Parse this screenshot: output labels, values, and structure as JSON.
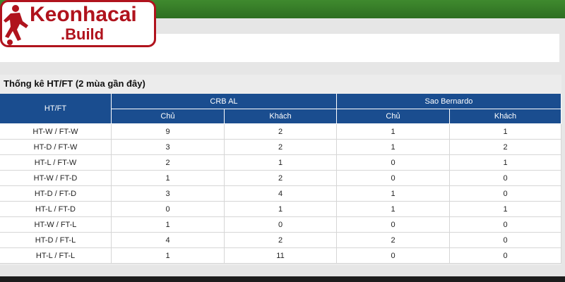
{
  "logo": {
    "name": "Keonhacai",
    "suffix": ".Build"
  },
  "section": {
    "title": "Thống kê HT/FT (2 mùa gần đây)"
  },
  "table": {
    "header": {
      "label": "HT/FT",
      "groups": [
        "CRB AL",
        "Sao Bernardo"
      ],
      "columns": [
        "Chủ",
        "Khách",
        "Chủ",
        "Khách"
      ]
    },
    "rows": [
      {
        "label": "HT-W / FT-W",
        "values": [
          9,
          2,
          1,
          1
        ]
      },
      {
        "label": "HT-D / FT-W",
        "values": [
          3,
          2,
          1,
          2
        ]
      },
      {
        "label": "HT-L / FT-W",
        "values": [
          2,
          1,
          0,
          1
        ]
      },
      {
        "label": "HT-W / FT-D",
        "values": [
          1,
          2,
          0,
          0
        ]
      },
      {
        "label": "HT-D / FT-D",
        "values": [
          3,
          4,
          1,
          0
        ]
      },
      {
        "label": "HT-L / FT-D",
        "values": [
          0,
          1,
          1,
          1
        ]
      },
      {
        "label": "HT-W / FT-L",
        "values": [
          1,
          0,
          0,
          0
        ]
      },
      {
        "label": "HT-D / FT-L",
        "values": [
          4,
          2,
          2,
          0
        ]
      },
      {
        "label": "HT-L / FT-L",
        "values": [
          1,
          11,
          0,
          0
        ]
      }
    ]
  }
}
